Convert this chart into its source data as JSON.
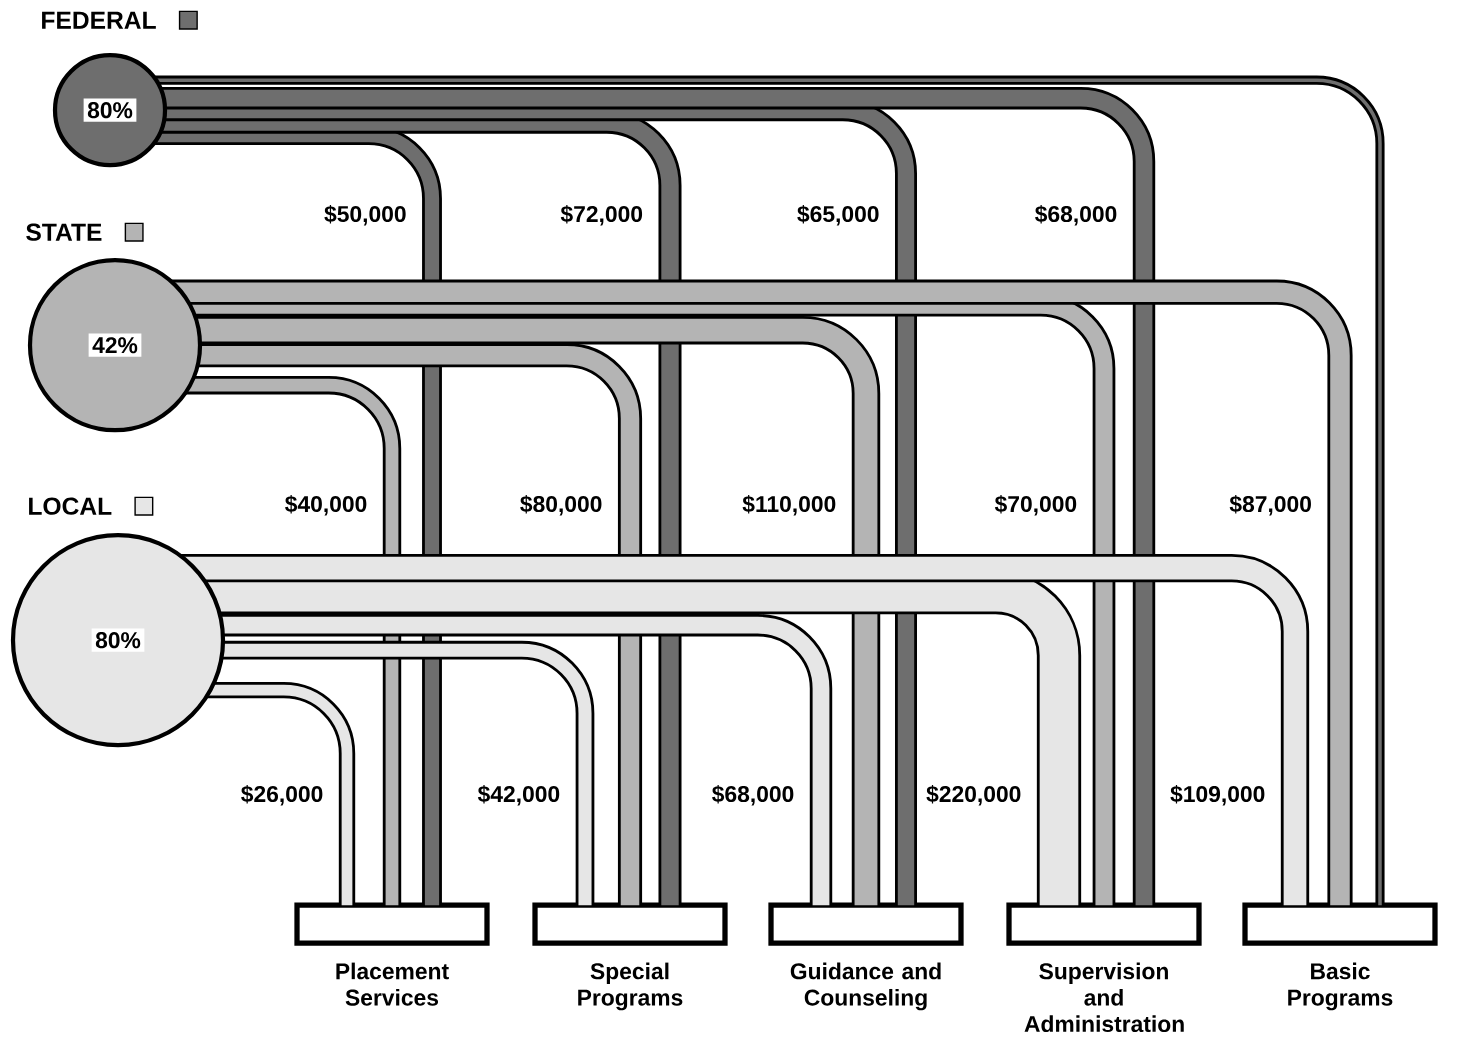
{
  "chart_data": {
    "type": "other",
    "categories": [
      "Placement Services",
      "Special Programs",
      "Guidance and Counseling",
      "Supervision and Administration",
      "Basic Programs"
    ],
    "series": [
      {
        "name": "FEDERAL",
        "color": "#6e6e6e",
        "values": [
          50000,
          72000,
          65000,
          68000,
          null
        ],
        "value_labels": [
          "$50,000",
          "$72,000",
          "$65,000",
          "$68,000",
          null
        ]
      },
      {
        "name": "STATE",
        "color": "#b4b4b4",
        "values": [
          40000,
          80000,
          110000,
          70000,
          87000
        ],
        "value_labels": [
          "$40,000",
          "$80,000",
          "$110,000",
          "$70,000",
          "$87,000"
        ]
      },
      {
        "name": "LOCAL",
        "color": "#e6e6e6",
        "values": [
          26000,
          42000,
          68000,
          220000,
          109000
        ],
        "value_labels": [
          "$26,000",
          "$42,000",
          "$68,000",
          "$220,000",
          "$109,000"
        ]
      }
    ],
    "annotations": [
      "80%",
      "42%",
      "80%"
    ]
  }
}
